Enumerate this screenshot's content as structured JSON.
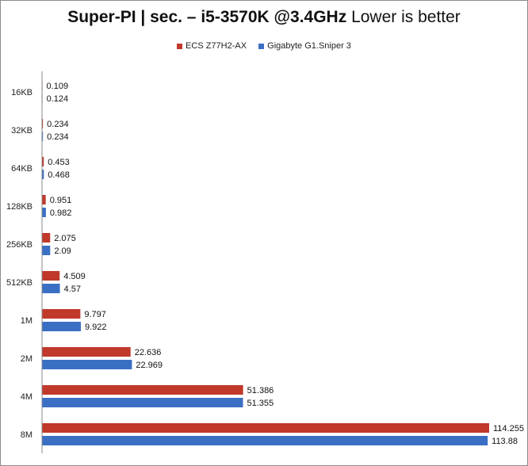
{
  "chart_data": {
    "type": "bar",
    "orientation": "horizontal",
    "title_bold": "Super-PI | sec. – i5-3570K @3.4GHz",
    "title_regular": "Lower is better",
    "categories": [
      "16KB",
      "32KB",
      "64KB",
      "128KB",
      "256KB",
      "512KB",
      "1M",
      "2M",
      "4M",
      "8M"
    ],
    "series": [
      {
        "name": "ECS Z77H2-AX",
        "color": "#c0392b",
        "values": [
          0.109,
          0.234,
          0.453,
          0.951,
          2.075,
          4.509,
          9.797,
          22.636,
          51.386,
          114.255
        ],
        "labels": [
          "0.109",
          "0.234",
          "0.453",
          "0.951",
          "2.075",
          "4.509",
          "9.797",
          "22.636",
          "51.386",
          "114.255"
        ]
      },
      {
        "name": "Gigabyte G1.Sniper 3",
        "color": "#3a6fc4",
        "values": [
          0.124,
          0.234,
          0.468,
          0.982,
          2.09,
          4.57,
          9.922,
          22.969,
          51.355,
          113.88
        ],
        "labels": [
          "0.124",
          "0.234",
          "0.468",
          "0.982",
          "2.09",
          "4.57",
          "9.922",
          "22.969",
          "51.355",
          "113.88"
        ]
      }
    ],
    "xlim": [
      0,
      114.255
    ],
    "grid": false,
    "legend_position": "top-center"
  }
}
